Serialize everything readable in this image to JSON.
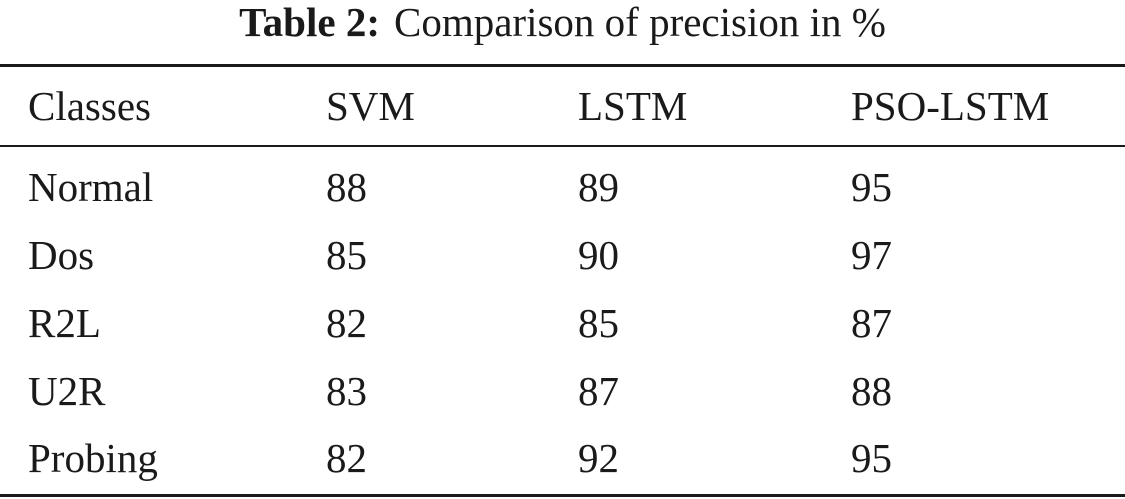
{
  "table": {
    "caption_label": "Table 2:",
    "caption_text": "Comparison of precision in %",
    "headers": [
      "Classes",
      "SVM",
      "LSTM",
      "PSO-LSTM"
    ],
    "rows": [
      [
        "Normal",
        "88",
        "89",
        "95"
      ],
      [
        "Dos",
        "85",
        "90",
        "97"
      ],
      [
        "R2L",
        "82",
        "85",
        "87"
      ],
      [
        "U2R",
        "83",
        "87",
        "88"
      ],
      [
        "Probing",
        "82",
        "92",
        "95"
      ]
    ]
  }
}
